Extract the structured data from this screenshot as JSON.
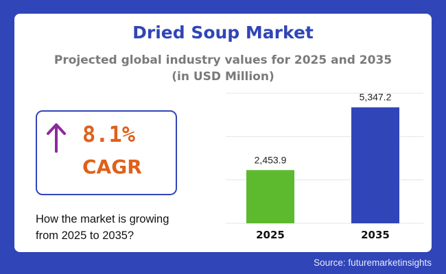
{
  "header": {
    "title": "Dried Soup Market",
    "subtitle_line1": "Projected global industry values for 2025 and 2035",
    "subtitle_line2": "(in USD Million)"
  },
  "cagr": {
    "value": "8.1%",
    "label": "CAGR",
    "icon": "arrow-up-icon",
    "question": [
      "How the market is growing",
      "from 2025 to 2035?"
    ]
  },
  "source": "Source: futuremarketinsights",
  "colors": {
    "background": "#3045b7",
    "accent": "#e0601a",
    "arrow": "#8b2a9b"
  },
  "chart_data": {
    "type": "bar",
    "categories": [
      "2025",
      "2035"
    ],
    "values": [
      2453.9,
      5347.2
    ],
    "data_labels": [
      "2,453.9",
      "5,347.2"
    ],
    "bar_colors": [
      "#5dba2e",
      "#3045b7"
    ],
    "ylim": [
      0,
      6000
    ],
    "grid": true,
    "unit": "USD Million"
  }
}
